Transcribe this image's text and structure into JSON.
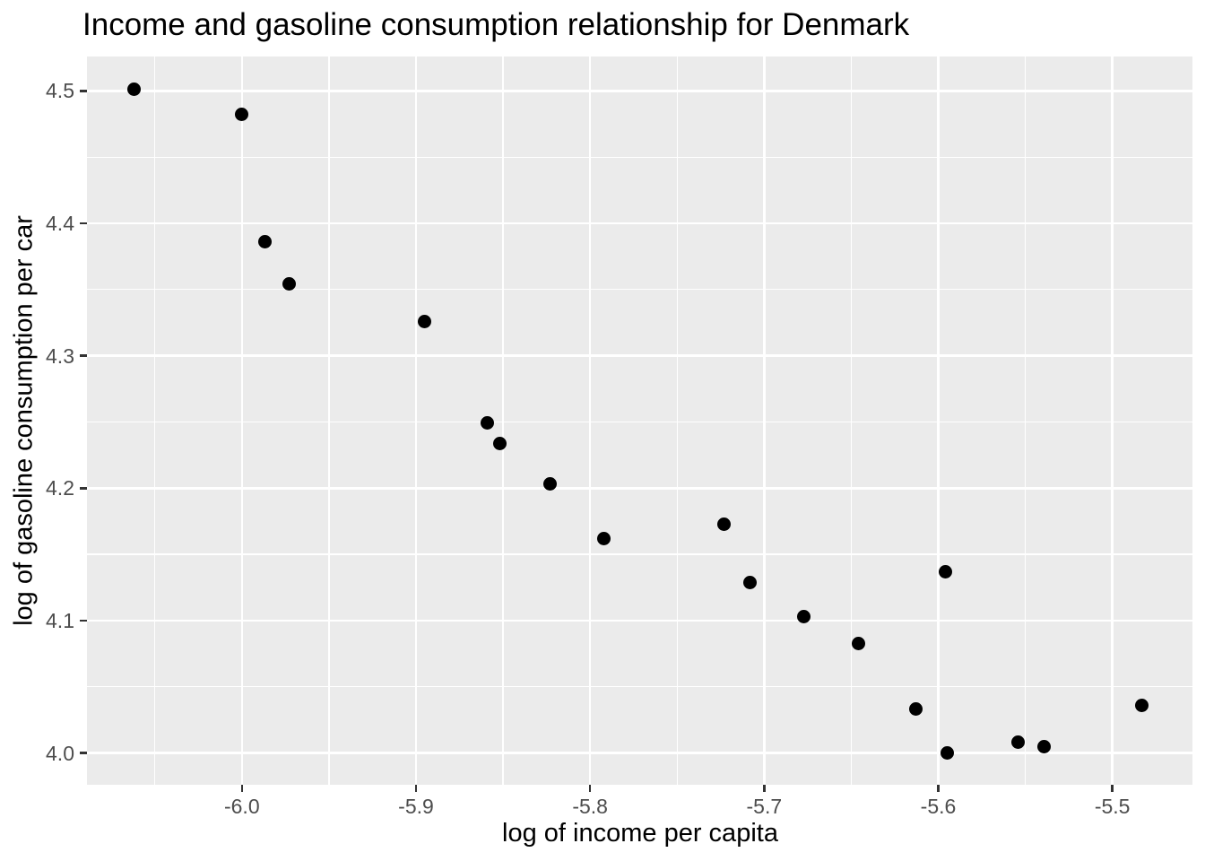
{
  "chart_data": {
    "type": "scatter",
    "title": "Income and gasoline consumption relationship for Denmark",
    "xlabel": "log of income per capita",
    "ylabel": "log of gasoline consumption per car",
    "xlim": [
      -6.089,
      -5.454
    ],
    "ylim": [
      3.976,
      4.526
    ],
    "x_ticks": [
      -6.0,
      -5.9,
      -5.8,
      -5.7,
      -5.6,
      -5.5
    ],
    "x_tick_labels": [
      "-6.0",
      "-5.9",
      "-5.8",
      "-5.7",
      "-5.6",
      "-5.5"
    ],
    "x_minor_ticks": [
      -6.05,
      -5.95,
      -5.85,
      -5.75,
      -5.65,
      -5.55
    ],
    "y_ticks": [
      4.0,
      4.1,
      4.2,
      4.3,
      4.4,
      4.5
    ],
    "y_tick_labels": [
      "4.0",
      "4.1",
      "4.2",
      "4.3",
      "4.4",
      "4.5"
    ],
    "y_minor_ticks": [
      4.05,
      4.15,
      4.25,
      4.35,
      4.45
    ],
    "grid": true,
    "legend": false,
    "points": [
      {
        "x": -6.062,
        "y": 4.501
      },
      {
        "x": -6.0,
        "y": 4.482
      },
      {
        "x": -5.987,
        "y": 4.386
      },
      {
        "x": -5.973,
        "y": 4.354
      },
      {
        "x": -5.895,
        "y": 4.326
      },
      {
        "x": -5.859,
        "y": 4.249
      },
      {
        "x": -5.852,
        "y": 4.234
      },
      {
        "x": -5.823,
        "y": 4.203
      },
      {
        "x": -5.792,
        "y": 4.162
      },
      {
        "x": -5.723,
        "y": 4.173
      },
      {
        "x": -5.708,
        "y": 4.129
      },
      {
        "x": -5.677,
        "y": 4.103
      },
      {
        "x": -5.646,
        "y": 4.083
      },
      {
        "x": -5.613,
        "y": 4.033
      },
      {
        "x": -5.596,
        "y": 4.137
      },
      {
        "x": -5.595,
        "y": 4.0
      },
      {
        "x": -5.554,
        "y": 4.008
      },
      {
        "x": -5.539,
        "y": 4.005
      },
      {
        "x": -5.483,
        "y": 4.036
      }
    ],
    "colors": {
      "background": "#FFFFFF",
      "panel_background": "#EBEBEB",
      "grid_major": "#FFFFFF",
      "grid_minor": "#FFFFFF",
      "point": "#000000",
      "tick_mark": "#333333",
      "tick_label": "#4D4D4D",
      "axis_title": "#000000",
      "title": "#000000"
    }
  }
}
